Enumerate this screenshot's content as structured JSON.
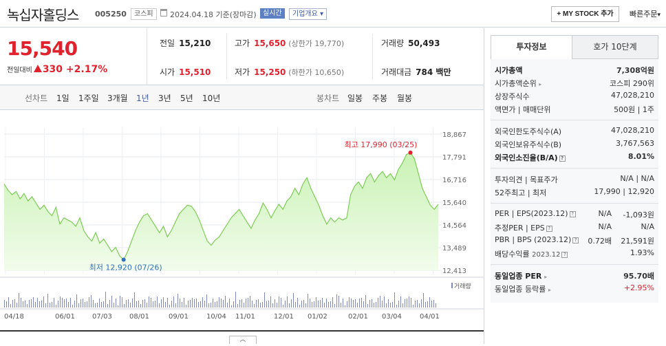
{
  "header": {
    "name": "녹십자홀딩스",
    "code": "005250",
    "market": "코스피",
    "date": "2024.04.18",
    "basis": "기준(장마감)",
    "realtime": "실시간",
    "corp_info": "기업개요",
    "mystock": "+ MY STOCK 추가",
    "quick_order": "빠른주문"
  },
  "price": {
    "current": "15,540",
    "change_label": "전일대비",
    "change": "330",
    "change_pct": "+2.17%"
  },
  "info": {
    "prev_k": "전일",
    "prev_v": "15,210",
    "open_k": "시가",
    "open_v": "15,510",
    "high_k": "고가",
    "high_v": "15,650",
    "upper": "(상한가 19,770)",
    "low_k": "저가",
    "low_v": "15,250",
    "lower": "(하한가 10,650)",
    "vol_k": "거래량",
    "vol_v": "50,493",
    "amt_k": "거래대금",
    "amt_v": "784 백만"
  },
  "tabs": {
    "line_label": "선차트",
    "line_items": [
      "1일",
      "1주일",
      "3개월",
      "1년",
      "3년",
      "5년",
      "10년"
    ],
    "active": "1년",
    "candle_label": "봉차트",
    "candle_items": [
      "일봉",
      "주봉",
      "월봉"
    ]
  },
  "chart_data": {
    "type": "line",
    "y_ticks": [
      "18,867",
      "17,791",
      "16,716",
      "15,640",
      "14,564",
      "13,489",
      "12,413"
    ],
    "ylim": [
      12413,
      18867
    ],
    "x_ticks": [
      "04/18",
      "06/01",
      "07/03",
      "08/01",
      "09/01",
      "10/04",
      "11/01",
      "12/01",
      "01/02",
      "02/01",
      "03/04",
      "04/01"
    ],
    "high_label": "최고 17,990 (03/25)",
    "low_label": "최저 12,920 (07/26)",
    "volume_label": "거래량",
    "series": [
      {
        "values": [
          16500,
          16200,
          16000,
          16150,
          15800,
          16050,
          15700,
          15900,
          15600,
          15300,
          15500,
          15200,
          15000,
          15400,
          14600,
          14900,
          14800,
          14700,
          14500,
          14900,
          14300,
          14000,
          13800,
          14200,
          13700,
          13900,
          13600,
          13300,
          13500,
          13100,
          12920,
          13300,
          13800,
          14300,
          14700,
          15000,
          15100,
          14800,
          14500,
          14200,
          14500,
          14000,
          14300,
          14700,
          15100,
          15300,
          15500,
          15450,
          15200,
          14800,
          14300,
          13800,
          13600,
          13850,
          14000,
          14300,
          14600,
          14900,
          15100,
          15300,
          15000,
          14700,
          14400,
          14800,
          15100,
          15600,
          15300,
          14900,
          15250,
          15550,
          15300,
          15700,
          15900,
          16300,
          16000,
          16500,
          16800,
          16300,
          15900,
          15500,
          15000,
          14600,
          14900,
          14700,
          14900,
          14800,
          14900,
          16000,
          16400,
          16600,
          16300,
          16800,
          17000,
          16600,
          16900,
          17100,
          16800,
          17000,
          16700,
          17200,
          17500,
          17900,
          17990,
          17700,
          17000,
          16300,
          15900,
          15500,
          15300,
          15540
        ]
      }
    ]
  },
  "right": {
    "tab1": "투자정보",
    "tab2": "호가 10단계",
    "mcap_k": "시가총액",
    "mcap_v": "7,308억원",
    "rank_k": "시가총액순위",
    "rank_v": "코스피 290위",
    "shares_k": "상장주식수",
    "shares_v": "47,028,210",
    "face_k": "액면가 | 매매단위",
    "face_v": "500원 | 1주",
    "flimit_k": "외국인한도주식수(A)",
    "flimit_v": "47,028,210",
    "fhold_k": "외국인보유주식수(B)",
    "fhold_v": "3,767,563",
    "fratio_k": "외국인소진율(B/A)",
    "fratio_v": "8.01%",
    "opinion_k": "투자의견 | 목표주가",
    "opinion_v": "N/A | N/A",
    "w52_k": "52주최고 | 최저",
    "w52_v": "17,990 | 12,920",
    "per_k": "PER | EPS(2023.12)",
    "per_m": "N/A",
    "per_v": "-1,093원",
    "eper_k": "추정PER | EPS",
    "eper_m": "N/A",
    "eper_v": "N/A",
    "pbr_k": "PBR | BPS (2023.12)",
    "pbr_m": "0.72배",
    "pbr_v": "21,591원",
    "div_k": "배당수익률",
    "div_sub": "2023.12",
    "div_v": "1.93%",
    "sper_k": "동일업종 PER",
    "sper_v": "95.70배",
    "srate_k": "동일업종 등락률",
    "srate_v": "+2.95%"
  }
}
